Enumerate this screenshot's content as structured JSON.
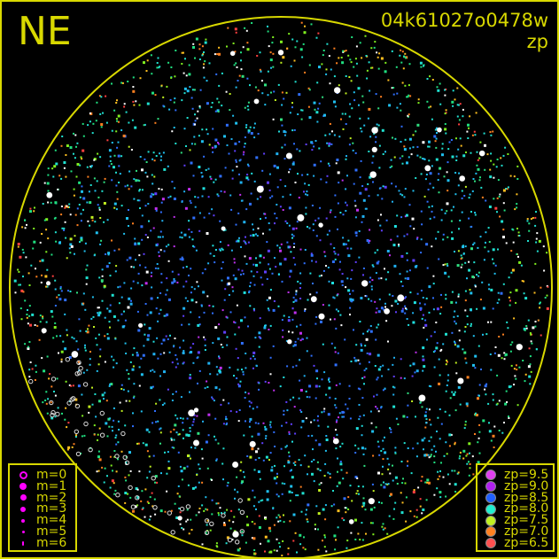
{
  "direction_label": "NE",
  "frame_id": "04k61027o0478w",
  "color_key_label": "zp",
  "magnitude_legend": [
    {
      "label": "m=0",
      "size": 0
    },
    {
      "label": "m=1",
      "size": 1
    },
    {
      "label": "m=2",
      "size": 2
    },
    {
      "label": "m=3",
      "size": 3
    },
    {
      "label": "m=4",
      "size": 4
    },
    {
      "label": "m=5",
      "size": 5
    },
    {
      "label": "m=6",
      "size": 6
    }
  ],
  "zp_legend": [
    {
      "label": "zp=9.5",
      "color": "#e040f0"
    },
    {
      "label": "zp=9.0",
      "color": "#b020f0"
    },
    {
      "label": "zp=8.5",
      "color": "#2060ff"
    },
    {
      "label": "zp=8.0",
      "color": "#20f0d0"
    },
    {
      "label": "zp=7.5",
      "color": "#c0f020"
    },
    {
      "label": "zp=7.0",
      "color": "#ff8020"
    },
    {
      "label": "zp=6.5",
      "color": "#ff5050"
    }
  ],
  "colors": {
    "frame": "#d8d800",
    "background": "#000000",
    "legend_marker": "#ff00ff"
  }
}
